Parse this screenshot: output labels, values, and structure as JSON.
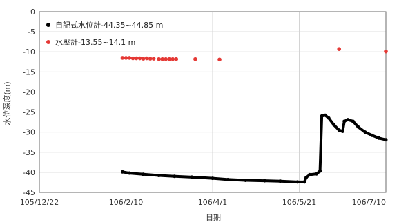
{
  "chart_data": {
    "type": "scatter",
    "xlabel": "日期",
    "ylabel": "水位深度(m)",
    "x_ticks": [
      "105/12/22",
      "106/2/10",
      "106/4/1",
      "106/5/21",
      "106/7/10"
    ],
    "y_ticks": [
      "0",
      "-5",
      "-10",
      "-15",
      "-20",
      "-25",
      "-30",
      "-35",
      "-40",
      "-45"
    ],
    "xlim": [
      "105/12/22",
      "106/7/10"
    ],
    "ylim": [
      -45,
      0
    ],
    "grid": true,
    "legend_position": "top-left",
    "series": [
      {
        "name": "自記式水位計-44.35~44.85 m",
        "color": "#000000",
        "marker": "dot",
        "points": [
          [
            "106/2/8",
            -39.9
          ],
          [
            "106/2/12",
            -40.2
          ],
          [
            "106/2/20",
            -40.5
          ],
          [
            "106/3/1",
            -40.8
          ],
          [
            "106/3/10",
            -41.0
          ],
          [
            "106/3/20",
            -41.2
          ],
          [
            "106/4/1",
            -41.5
          ],
          [
            "106/4/10",
            -41.8
          ],
          [
            "106/4/20",
            -42.0
          ],
          [
            "106/5/1",
            -42.1
          ],
          [
            "106/5/10",
            -42.2
          ],
          [
            "106/5/20",
            -42.4
          ],
          [
            "106/5/24",
            -42.4
          ],
          [
            "106/5/25",
            -41.3
          ],
          [
            "106/5/27",
            -40.6
          ],
          [
            "106/5/31",
            -40.4
          ],
          [
            "106/6/2",
            -39.7
          ],
          [
            "106/6/3",
            -26.0
          ],
          [
            "106/6/5",
            -25.8
          ],
          [
            "106/6/7",
            -26.5
          ],
          [
            "106/6/10",
            -28.2
          ],
          [
            "106/6/13",
            -29.5
          ],
          [
            "106/6/15",
            -29.8
          ],
          [
            "106/6/16",
            -27.3
          ],
          [
            "106/6/18",
            -26.9
          ],
          [
            "106/6/21",
            -27.3
          ],
          [
            "106/6/24",
            -28.7
          ],
          [
            "106/6/28",
            -30.0
          ],
          [
            "106/7/2",
            -30.8
          ],
          [
            "106/7/6",
            -31.5
          ],
          [
            "106/7/10",
            -31.9
          ]
        ]
      },
      {
        "name": "水壓計-13.55~14.1 m",
        "color": "#e53935",
        "marker": "dot",
        "points": [
          [
            "106/2/8",
            -11.5
          ],
          [
            "106/2/10",
            -11.5
          ],
          [
            "106/2/12",
            -11.5
          ],
          [
            "106/2/14",
            -11.6
          ],
          [
            "106/2/16",
            -11.6
          ],
          [
            "106/2/18",
            -11.6
          ],
          [
            "106/2/20",
            -11.7
          ],
          [
            "106/2/22",
            -11.6
          ],
          [
            "106/2/24",
            -11.7
          ],
          [
            "106/2/26",
            -11.7
          ],
          [
            "106/3/1",
            -11.8
          ],
          [
            "106/3/3",
            -11.8
          ],
          [
            "106/3/5",
            -11.8
          ],
          [
            "106/3/7",
            -11.8
          ],
          [
            "106/3/9",
            -11.8
          ],
          [
            "106/3/11",
            -11.8
          ],
          [
            "106/3/22",
            -11.8
          ],
          [
            "106/4/5",
            -11.9
          ],
          [
            "106/6/13",
            -9.3
          ],
          [
            "106/7/10",
            -9.9
          ]
        ]
      }
    ]
  }
}
